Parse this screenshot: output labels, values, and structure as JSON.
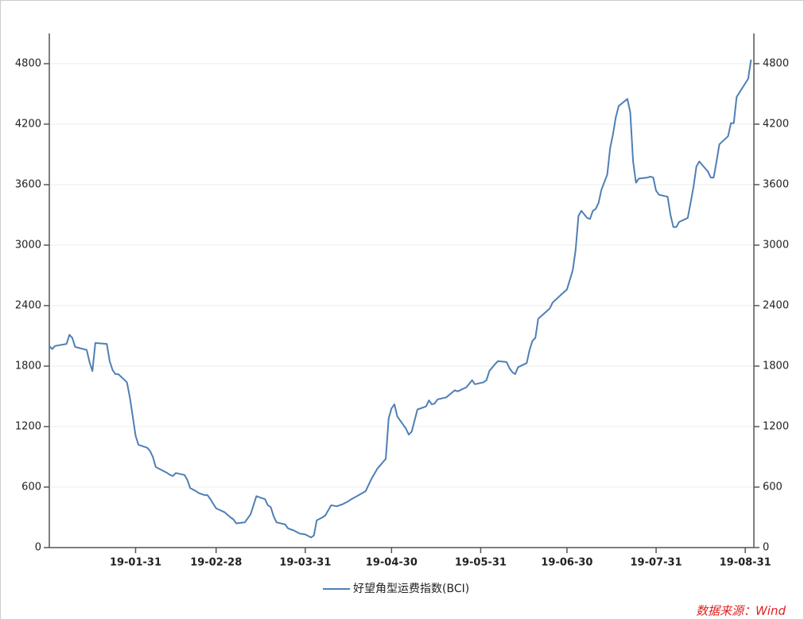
{
  "chart_data": {
    "type": "line",
    "x": [
      "19-01-01",
      "19-01-02",
      "19-01-03",
      "19-01-07",
      "19-01-08",
      "19-01-09",
      "19-01-10",
      "19-01-14",
      "19-01-15",
      "19-01-16",
      "19-01-17",
      "19-01-21",
      "19-01-22",
      "19-01-23",
      "19-01-24",
      "19-01-25",
      "19-01-28",
      "19-01-29",
      "19-01-30",
      "19-01-31",
      "19-02-01",
      "19-02-04",
      "19-02-05",
      "19-02-06",
      "19-02-07",
      "19-02-11",
      "19-02-12",
      "19-02-13",
      "19-02-14",
      "19-02-17",
      "19-02-18",
      "19-02-19",
      "19-02-21",
      "19-02-22",
      "19-02-24",
      "19-02-25",
      "19-02-26",
      "19-02-28",
      "19-03-03",
      "19-03-05",
      "19-03-06",
      "19-03-07",
      "19-03-10",
      "19-03-12",
      "19-03-14",
      "19-03-17",
      "19-03-18",
      "19-03-19",
      "19-03-20",
      "19-03-21",
      "19-03-24",
      "19-03-25",
      "19-03-27",
      "19-03-29",
      "19-03-31",
      "19-04-02",
      "19-04-03",
      "19-04-04",
      "19-04-06",
      "19-04-07",
      "19-04-09",
      "19-04-11",
      "19-04-13",
      "19-04-15",
      "19-04-16",
      "19-04-18",
      "19-04-21",
      "19-04-23",
      "19-04-25",
      "19-04-28",
      "19-04-29",
      "19-04-30",
      "19-05-01",
      "19-05-02",
      "19-05-05",
      "19-05-06",
      "19-05-07",
      "19-05-09",
      "19-05-12",
      "19-05-13",
      "19-05-14",
      "19-05-15",
      "19-05-16",
      "19-05-19",
      "19-05-22",
      "19-05-23",
      "19-05-26",
      "19-05-28",
      "19-05-29",
      "19-06-01",
      "19-06-02",
      "19-06-03",
      "19-06-05",
      "19-06-06",
      "19-06-09",
      "19-06-10",
      "19-06-11",
      "19-06-12",
      "19-06-13",
      "19-06-16",
      "19-06-17",
      "19-06-18",
      "19-06-19",
      "19-06-20",
      "19-06-24",
      "19-06-25",
      "19-06-28",
      "19-06-30",
      "19-07-02",
      "19-07-03",
      "19-07-04",
      "19-07-05",
      "19-07-07",
      "19-07-08",
      "19-07-09",
      "19-07-10",
      "19-07-11",
      "19-07-12",
      "19-07-14",
      "19-07-15",
      "19-07-16",
      "19-07-17",
      "19-07-18",
      "19-07-21",
      "19-07-22",
      "19-07-23",
      "19-07-24",
      "19-07-25",
      "19-07-28",
      "19-07-29",
      "19-07-30",
      "19-07-31",
      "19-08-01",
      "19-08-04",
      "19-08-05",
      "19-08-06",
      "19-08-07",
      "19-08-08",
      "19-08-11",
      "19-08-12",
      "19-08-13",
      "19-08-14",
      "19-08-15",
      "19-08-18",
      "19-08-19",
      "19-08-20",
      "19-08-21",
      "19-08-22",
      "19-08-25",
      "19-08-26",
      "19-08-27",
      "19-08-28",
      "19-09-01",
      "19-09-02"
    ],
    "series": [
      {
        "name": "好望角型运费指数(BCI)",
        "color": "#4f7fb5",
        "values": [
          2000,
          1970,
          2000,
          2020,
          2110,
          2080,
          1990,
          1960,
          1840,
          1750,
          2030,
          2020,
          1850,
          1760,
          1720,
          1720,
          1640,
          1490,
          1300,
          1110,
          1020,
          990,
          960,
          900,
          800,
          740,
          720,
          710,
          740,
          720,
          670,
          590,
          560,
          540,
          520,
          520,
          480,
          390,
          350,
          300,
          280,
          240,
          250,
          330,
          510,
          480,
          420,
          400,
          310,
          250,
          230,
          190,
          170,
          140,
          130,
          100,
          120,
          270,
          300,
          320,
          420,
          410,
          430,
          460,
          480,
          510,
          560,
          680,
          780,
          880,
          1280,
          1380,
          1420,
          1300,
          1180,
          1120,
          1150,
          1370,
          1400,
          1460,
          1420,
          1430,
          1470,
          1490,
          1560,
          1550,
          1590,
          1660,
          1620,
          1640,
          1660,
          1750,
          1820,
          1850,
          1840,
          1780,
          1740,
          1720,
          1790,
          1830,
          1960,
          2050,
          2080,
          2270,
          2370,
          2430,
          2510,
          2560,
          2750,
          2950,
          3290,
          3340,
          3270,
          3260,
          3340,
          3360,
          3420,
          3550,
          3700,
          3960,
          4100,
          4270,
          4380,
          4450,
          4320,
          3830,
          3620,
          3660,
          3670,
          3680,
          3670,
          3540,
          3500,
          3480,
          3300,
          3180,
          3180,
          3230,
          3270,
          3420,
          3580,
          3780,
          3830,
          3730,
          3670,
          3670,
          3830,
          4000,
          4080,
          4210,
          4210,
          4470,
          4650,
          4840
        ]
      }
    ],
    "xlim": [
      "19-01-01",
      "19-09-03"
    ],
    "xticks": [
      "19-01-31",
      "19-02-28",
      "19-03-31",
      "19-04-30",
      "19-05-31",
      "19-06-30",
      "19-07-31",
      "19-08-31"
    ],
    "ylim": [
      0,
      5100
    ],
    "yticks": [
      0,
      600,
      1200,
      1800,
      2400,
      3000,
      3600,
      4200,
      4800
    ],
    "grid": true,
    "source": "数据来源：Wind"
  }
}
